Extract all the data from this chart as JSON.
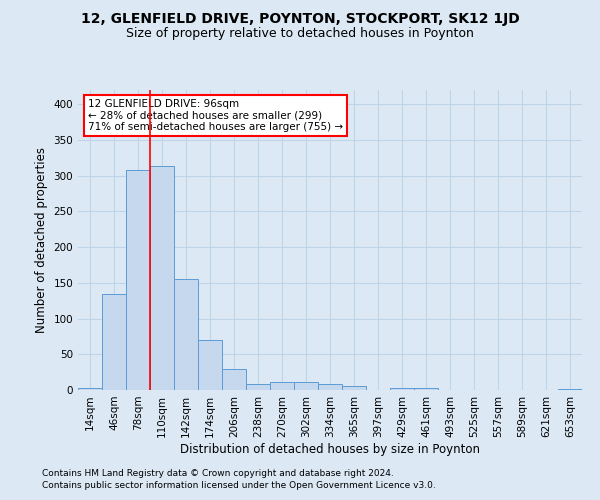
{
  "title": "12, GLENFIELD DRIVE, POYNTON, STOCKPORT, SK12 1JD",
  "subtitle": "Size of property relative to detached houses in Poynton",
  "xlabel": "Distribution of detached houses by size in Poynton",
  "ylabel": "Number of detached properties",
  "categories": [
    "14sqm",
    "46sqm",
    "78sqm",
    "110sqm",
    "142sqm",
    "174sqm",
    "206sqm",
    "238sqm",
    "270sqm",
    "302sqm",
    "334sqm",
    "365sqm",
    "397sqm",
    "429sqm",
    "461sqm",
    "493sqm",
    "525sqm",
    "557sqm",
    "589sqm",
    "621sqm",
    "653sqm"
  ],
  "values": [
    3,
    135,
    308,
    313,
    155,
    70,
    30,
    9,
    11,
    11,
    8,
    6,
    0,
    3,
    3,
    0,
    0,
    0,
    0,
    0,
    1
  ],
  "bar_color": "#c5d8ed",
  "bar_edge_color": "#5b9bd5",
  "grid_color": "#c0d4e8",
  "background_color": "#dce9f5",
  "annotation_box_text": "12 GLENFIELD DRIVE: 96sqm\n← 28% of detached houses are smaller (299)\n71% of semi-detached houses are larger (755) →",
  "annotation_box_color": "white",
  "annotation_box_edge_color": "red",
  "redline_x": 1.75,
  "ylim": [
    0,
    420
  ],
  "yticks": [
    0,
    50,
    100,
    150,
    200,
    250,
    300,
    350,
    400
  ],
  "footer1": "Contains HM Land Registry data © Crown copyright and database right 2024.",
  "footer2": "Contains public sector information licensed under the Open Government Licence v3.0.",
  "title_fontsize": 10,
  "subtitle_fontsize": 9,
  "axis_label_fontsize": 8.5,
  "tick_fontsize": 7.5,
  "footer_fontsize": 6.5
}
